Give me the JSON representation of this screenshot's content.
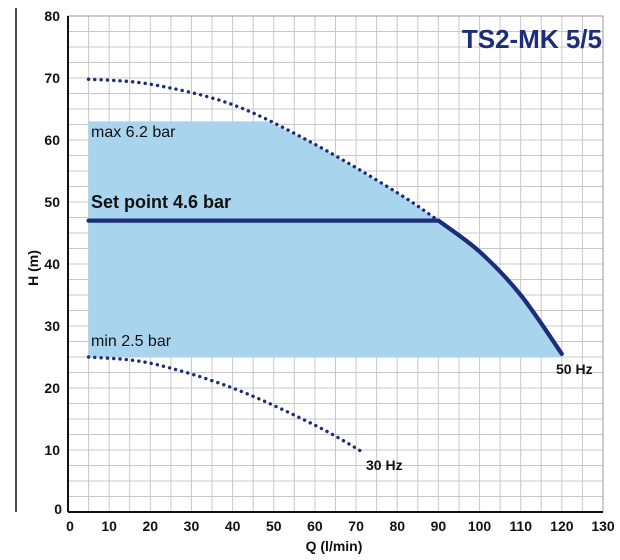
{
  "chart_data": {
    "type": "line",
    "title": "TS2-MK 5/5",
    "xlabel": "Q (l/min)",
    "ylabel": "H (m)",
    "xlim": [
      0,
      130
    ],
    "ylim": [
      0,
      80
    ],
    "x_ticks": [
      0,
      10,
      20,
      30,
      40,
      50,
      60,
      70,
      80,
      90,
      100,
      110,
      120,
      130
    ],
    "y_ticks": [
      0,
      10,
      20,
      30,
      40,
      50,
      60,
      70,
      80
    ],
    "grid": true,
    "band": {
      "x_from": 5,
      "x_to": 120,
      "y_from": 25,
      "y_to": 63
    },
    "annotations": {
      "max_label": "max 6.2 bar",
      "min_label": "min 2.5 bar",
      "setpoint_label": "Set point 4.6 bar"
    },
    "series": [
      {
        "name": "50 Hz",
        "style": "dotted",
        "x": [
          5,
          20,
          40,
          60,
          80,
          90
        ],
        "y": [
          69.8,
          69,
          65.7,
          59.3,
          51.5,
          47
        ]
      },
      {
        "name": "50 Hz",
        "style": "solid",
        "x": [
          90,
          100,
          110,
          120
        ],
        "y": [
          47,
          42,
          35,
          25.5
        ]
      },
      {
        "name": "Set point 4.6 bar",
        "style": "solid",
        "x": [
          5,
          90
        ],
        "y": [
          47,
          47
        ]
      },
      {
        "name": "30 Hz",
        "style": "dotted",
        "x": [
          5,
          20,
          40,
          60,
          72
        ],
        "y": [
          25,
          24,
          20,
          14,
          9.5
        ]
      }
    ],
    "curve_labels": {
      "hz50": "50 Hz",
      "hz30": "30 Hz"
    },
    "colors": {
      "band": "#a9d4ee",
      "curve": "#1c2d7a",
      "title": "#1c2d7a",
      "grid": "#c8c8c8",
      "axis": "#111111"
    }
  }
}
